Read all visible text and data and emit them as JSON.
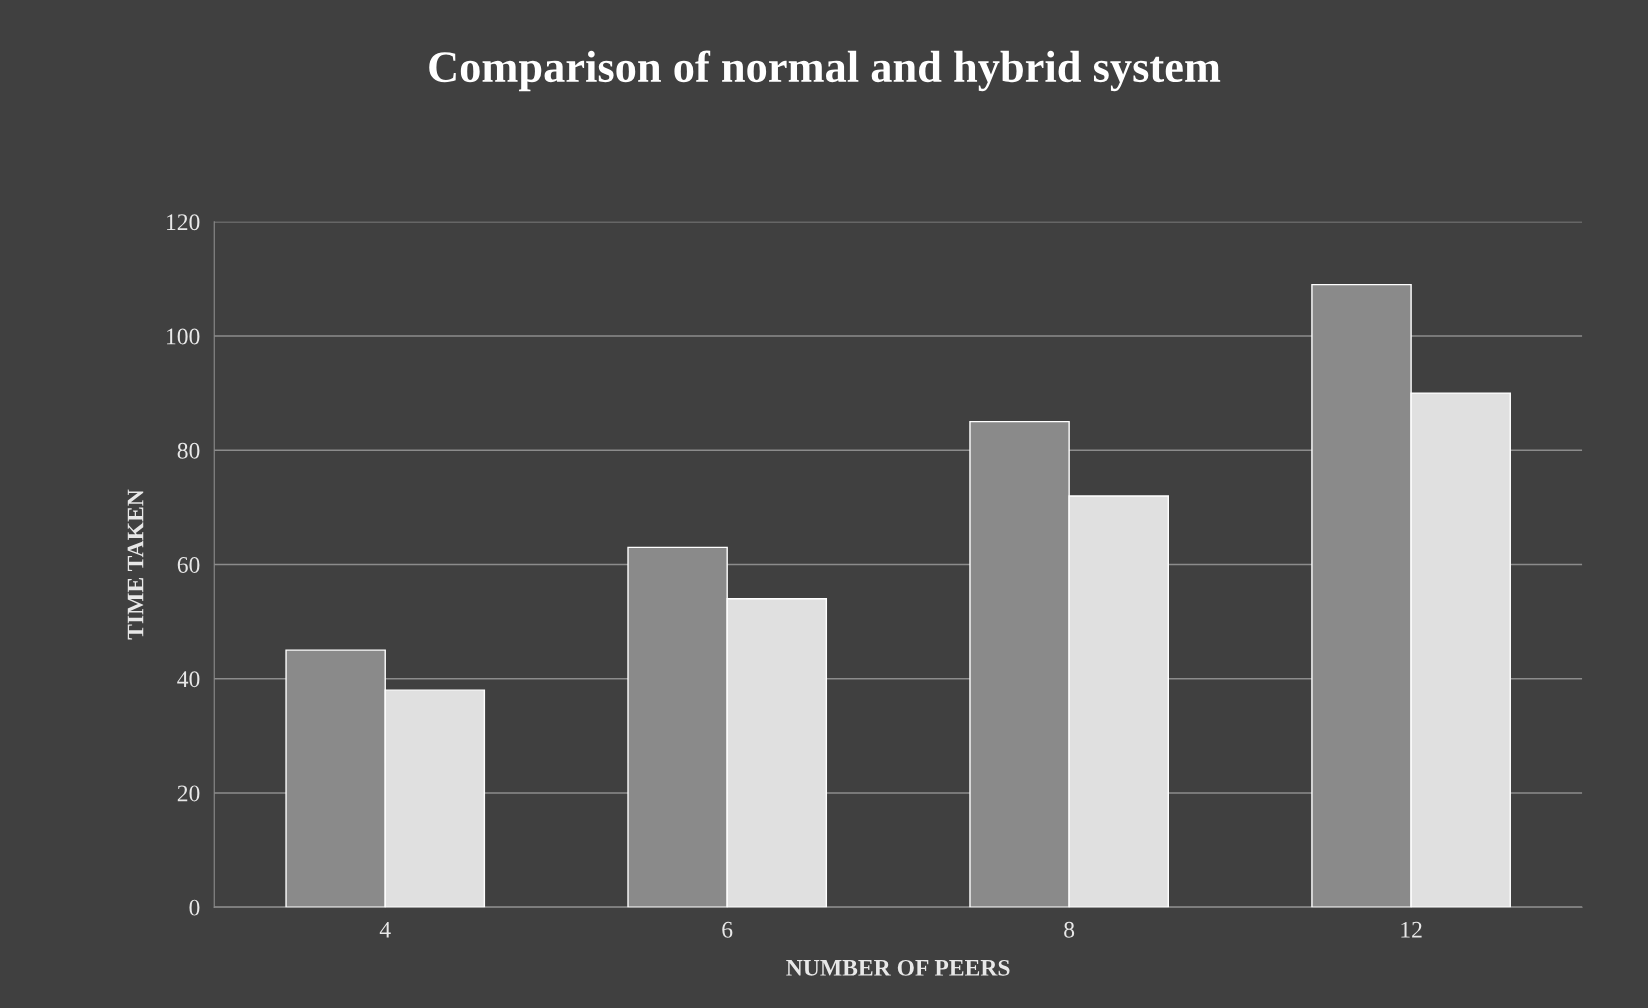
{
  "chart_data": {
    "type": "bar",
    "title": "Comparison of normal and hybrid system",
    "xlabel": "NUMBER OF PEERS",
    "ylabel": "TIME TAKEN",
    "categories": [
      "4",
      "6",
      "8",
      "12"
    ],
    "series": [
      {
        "color": "#8a8a8a",
        "values": [
          45,
          63,
          85,
          109
        ]
      },
      {
        "color": "#e0e0e0",
        "values": [
          38,
          54,
          72,
          90
        ]
      }
    ],
    "ylim": [
      0,
      120
    ],
    "yticks": [
      0,
      20,
      40,
      60,
      80,
      100,
      120
    ],
    "grid": "y"
  }
}
